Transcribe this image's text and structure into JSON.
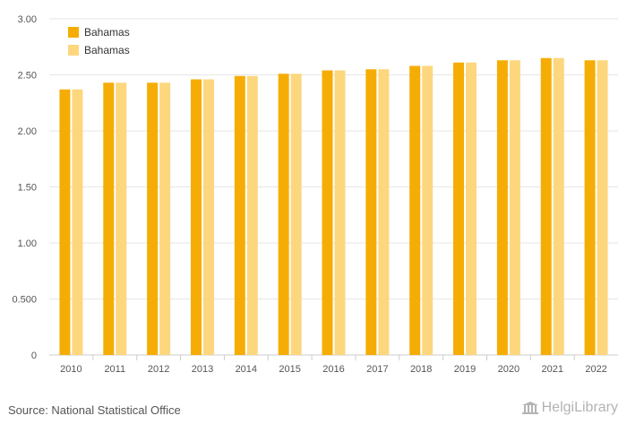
{
  "chart_data": {
    "type": "bar",
    "categories": [
      "2010",
      "2011",
      "2012",
      "2013",
      "2014",
      "2015",
      "2016",
      "2017",
      "2018",
      "2019",
      "2020",
      "2021",
      "2022"
    ],
    "series": [
      {
        "name": "Bahamas",
        "color": "#f5ad05",
        "values": [
          2.37,
          2.43,
          2.43,
          2.46,
          2.49,
          2.51,
          2.54,
          2.55,
          2.58,
          2.61,
          2.63,
          2.65,
          2.63
        ]
      },
      {
        "name": "Bahamas",
        "color": "#fdd77e",
        "values": [
          2.37,
          2.43,
          2.43,
          2.46,
          2.49,
          2.51,
          2.54,
          2.55,
          2.58,
          2.61,
          2.63,
          2.65,
          2.63
        ]
      }
    ],
    "ylim": [
      0,
      3
    ],
    "yticks": [
      0,
      0.5,
      1.0,
      1.5,
      2.0,
      2.5,
      3.0
    ],
    "ytick_labels": [
      "0",
      "0.500",
      "1.00",
      "1.50",
      "2.00",
      "2.50",
      "3.00"
    ],
    "grid": true,
    "legend": "top-left"
  },
  "source_text": "Source: National Statistical Office",
  "brand": "HelgiLibrary"
}
